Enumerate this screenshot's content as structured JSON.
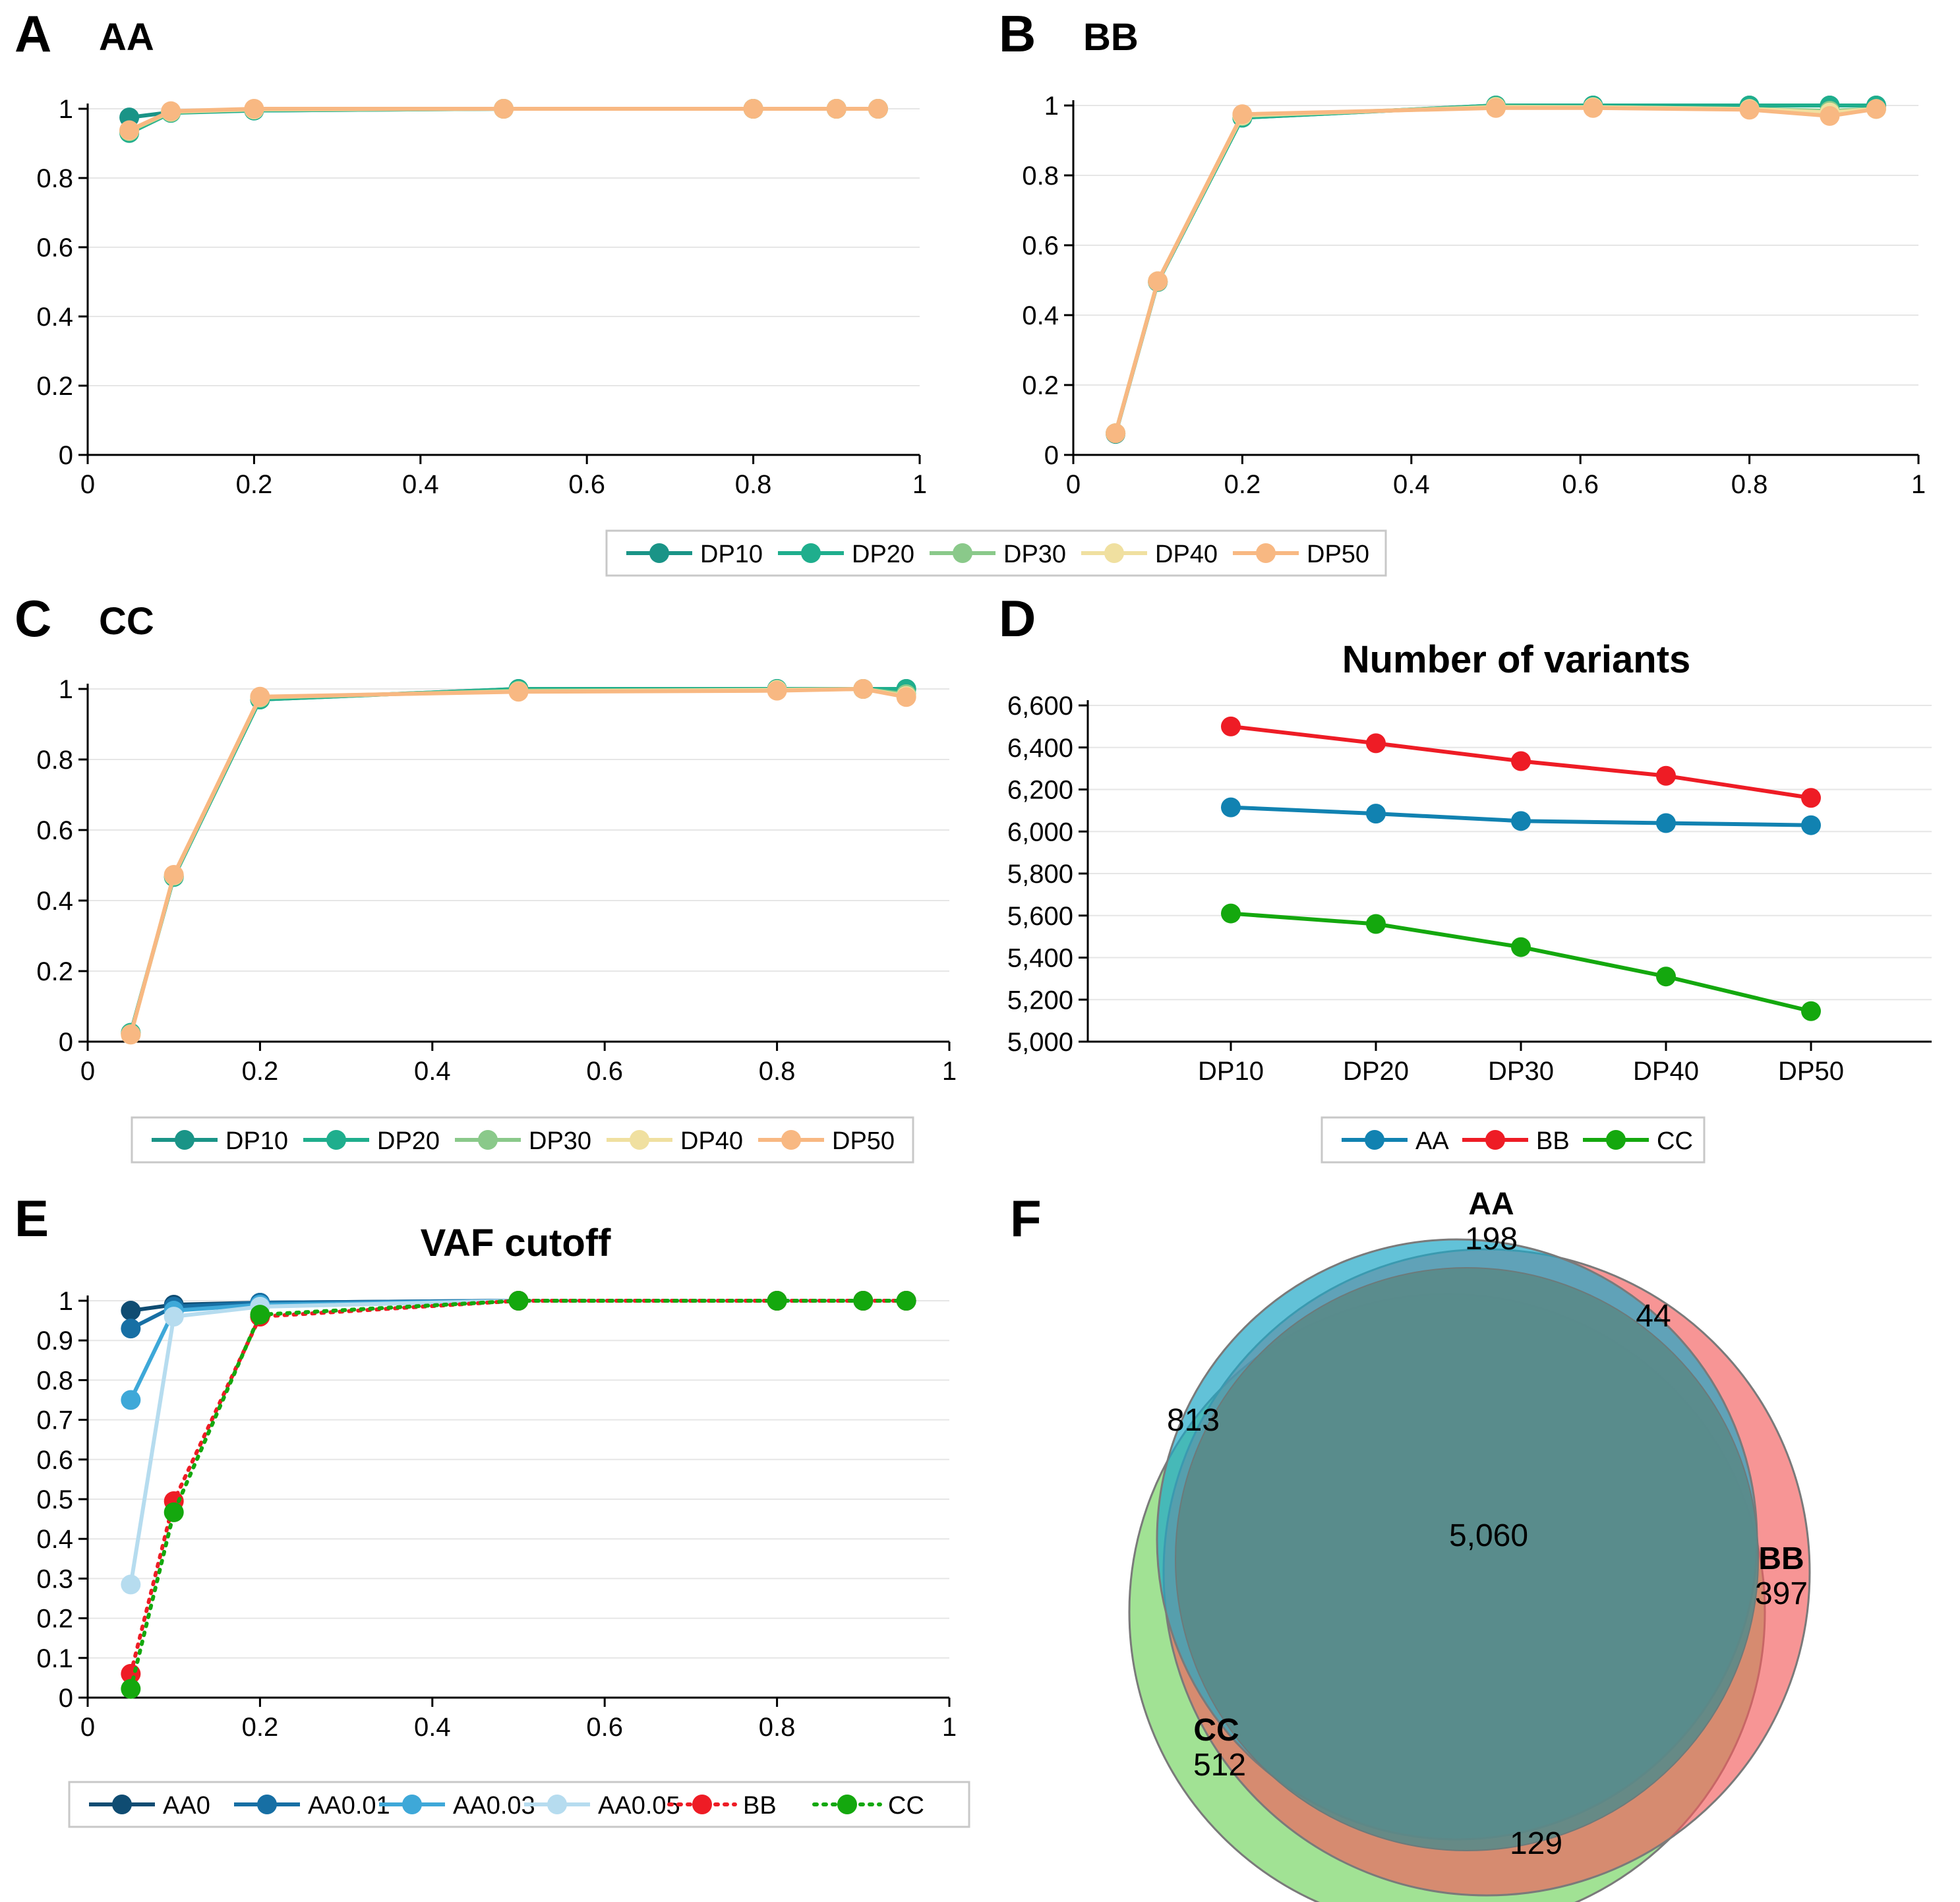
{
  "chart_data": [
    {
      "panel": "A",
      "title": "AA",
      "type": "line",
      "xlim": [
        0,
        1
      ],
      "ylim": [
        0,
        1
      ],
      "xticks": [
        "0",
        "0.2",
        "0.4",
        "0.6",
        "0.8",
        "1"
      ],
      "yticks": [
        "0",
        "0.2",
        "0.4",
        "0.6",
        "0.8",
        "1"
      ],
      "x": [
        0.05,
        0.1,
        0.2,
        0.5,
        0.8,
        0.9,
        0.95
      ],
      "series": [
        {
          "name": "DP10",
          "color": "#1a9487",
          "values": [
            0.975,
            0.99,
            0.995,
            1.0,
            1.0,
            1.0,
            1.0
          ]
        },
        {
          "name": "DP20",
          "color": "#1fae8d",
          "values": [
            0.93,
            0.988,
            0.995,
            1.0,
            1.0,
            1.0,
            1.0
          ]
        },
        {
          "name": "DP30",
          "color": "#8ac98a",
          "values": [
            0.935,
            0.99,
            0.998,
            1.0,
            1.0,
            1.0,
            1.0
          ]
        },
        {
          "name": "DP40",
          "color": "#f0e0a0",
          "values": [
            0.937,
            0.992,
            0.998,
            1.0,
            1.0,
            1.0,
            1.0
          ]
        },
        {
          "name": "DP50",
          "color": "#f8b882",
          "values": [
            0.938,
            0.993,
            1.0,
            1.0,
            1.0,
            1.0,
            1.0
          ]
        }
      ]
    },
    {
      "panel": "B",
      "title": "BB",
      "type": "line",
      "xlim": [
        0,
        1
      ],
      "ylim": [
        0,
        1
      ],
      "xticks": [
        "0",
        "0.2",
        "0.4",
        "0.6",
        "0.8",
        "1"
      ],
      "yticks": [
        "0",
        "0.2",
        "0.4",
        "0.6",
        "0.8",
        "1"
      ],
      "x": [
        0.05,
        0.1,
        0.2,
        0.5,
        0.615,
        0.8,
        0.895,
        0.95
      ],
      "series": [
        {
          "name": "DP10",
          "color": "#1a9487",
          "values": [
            0.06,
            0.495,
            0.965,
            1.0,
            1.0,
            1.0,
            1.0,
            1.0
          ]
        },
        {
          "name": "DP20",
          "color": "#1fae8d",
          "values": [
            0.062,
            0.495,
            0.965,
            1.0,
            1.0,
            1.0,
            1.0,
            1.0
          ]
        },
        {
          "name": "DP30",
          "color": "#8ac98a",
          "values": [
            0.062,
            0.497,
            0.97,
            0.997,
            0.995,
            0.99,
            0.985,
            0.99
          ]
        },
        {
          "name": "DP40",
          "color": "#f0e0a0",
          "values": [
            0.062,
            0.497,
            0.972,
            0.995,
            0.995,
            0.99,
            0.98,
            0.99
          ]
        },
        {
          "name": "DP50",
          "color": "#f8b882",
          "values": [
            0.062,
            0.497,
            0.975,
            0.993,
            0.993,
            0.988,
            0.97,
            0.99
          ]
        }
      ]
    },
    {
      "panel": "C",
      "title": "CC",
      "type": "line",
      "xlim": [
        0,
        1
      ],
      "ylim": [
        0,
        1
      ],
      "xticks": [
        "0",
        "0.2",
        "0.4",
        "0.6",
        "0.8",
        "1"
      ],
      "yticks": [
        "0",
        "0.2",
        "0.4",
        "0.6",
        "0.8",
        "1"
      ],
      "x": [
        0.05,
        0.1,
        0.2,
        0.5,
        0.8,
        0.9,
        0.95
      ],
      "series": [
        {
          "name": "DP10",
          "color": "#1a9487",
          "values": [
            0.025,
            0.467,
            0.97,
            1.0,
            1.0,
            1.0,
            1.0
          ]
        },
        {
          "name": "DP20",
          "color": "#1fae8d",
          "values": [
            0.025,
            0.467,
            0.97,
            1.0,
            1.0,
            1.0,
            1.0
          ]
        },
        {
          "name": "DP30",
          "color": "#8ac98a",
          "values": [
            0.022,
            0.47,
            0.975,
            0.995,
            0.998,
            1.0,
            0.985
          ]
        },
        {
          "name": "DP40",
          "color": "#f0e0a0",
          "values": [
            0.02,
            0.472,
            0.977,
            0.993,
            0.997,
            1.0,
            0.98
          ]
        },
        {
          "name": "DP50",
          "color": "#f8b882",
          "values": [
            0.02,
            0.473,
            0.978,
            0.992,
            0.995,
            1.0,
            0.977
          ]
        }
      ]
    },
    {
      "panel": "D",
      "title": "Number of variants",
      "type": "line",
      "categories": [
        "DP10",
        "DP20",
        "DP30",
        "DP40",
        "DP50"
      ],
      "ylim": [
        5000,
        6600
      ],
      "yticks": [
        "5,000",
        "5,200",
        "5,400",
        "5,600",
        "5,800",
        "6,000",
        "6,200",
        "6,400",
        "6,600"
      ],
      "series": [
        {
          "name": "AA",
          "color": "#1182b1",
          "values": [
            6115,
            6085,
            6050,
            6040,
            6030
          ]
        },
        {
          "name": "BB",
          "color": "#ee1c25",
          "values": [
            6500,
            6420,
            6335,
            6265,
            6160
          ]
        },
        {
          "name": "CC",
          "color": "#14a80e",
          "values": [
            5610,
            5560,
            5450,
            5310,
            5145
          ]
        }
      ]
    },
    {
      "panel": "E",
      "title": "VAF cutoff",
      "type": "line",
      "xlim": [
        0,
        1
      ],
      "ylim": [
        0,
        1
      ],
      "xticks": [
        "0",
        "0.2",
        "0.4",
        "0.6",
        "0.8",
        "1"
      ],
      "yticks": [
        "0",
        "0.1",
        "0.2",
        "0.3",
        "0.4",
        "0.5",
        "0.6",
        "0.7",
        "0.8",
        "0.9",
        "1"
      ],
      "x": [
        0.05,
        0.1,
        0.2,
        0.5,
        0.8,
        0.9,
        0.95
      ],
      "series": [
        {
          "name": "AA0",
          "color": "#0f4c72",
          "dash": "solid",
          "values": [
            0.975,
            0.99,
            0.995,
            1.0,
            1.0,
            1.0,
            1.0
          ]
        },
        {
          "name": "AA0.01",
          "color": "#176fa4",
          "dash": "solid",
          "values": [
            0.93,
            0.985,
            0.995,
            1.0,
            1.0,
            1.0,
            1.0
          ]
        },
        {
          "name": "AA0.03",
          "color": "#3ea8d8",
          "dash": "solid",
          "values": [
            0.75,
            0.975,
            0.99,
            1.0,
            1.0,
            1.0,
            1.0
          ]
        },
        {
          "name": "AA0.05",
          "color": "#b6dcef",
          "dash": "solid",
          "values": [
            0.285,
            0.96,
            0.985,
            1.0,
            1.0,
            1.0,
            1.0
          ]
        },
        {
          "name": "BB",
          "color": "#ee1c25",
          "dash": "dotted",
          "values": [
            0.06,
            0.495,
            0.96,
            1.0,
            1.0,
            1.0,
            1.0
          ]
        },
        {
          "name": "CC",
          "color": "#14a80e",
          "dash": "dotted",
          "values": [
            0.022,
            0.467,
            0.965,
            1.0,
            1.0,
            1.0,
            1.0
          ]
        }
      ]
    },
    {
      "panel": "F",
      "type": "venn",
      "sets": [
        {
          "name": "AA",
          "count": "198",
          "color": "#28a8c8"
        },
        {
          "name": "BB",
          "count": "397",
          "color": "#f25c5c"
        },
        {
          "name": "CC",
          "count": "512",
          "color": "#6fd25a"
        }
      ],
      "overlaps": [
        {
          "sets": [
            "AA",
            "BB"
          ],
          "count": "44"
        },
        {
          "sets": [
            "AA",
            "CC"
          ],
          "count": "813"
        },
        {
          "sets": [
            "BB",
            "CC"
          ],
          "count": "129"
        },
        {
          "sets": [
            "AA",
            "BB",
            "CC"
          ],
          "count": "5,060"
        }
      ]
    }
  ]
}
